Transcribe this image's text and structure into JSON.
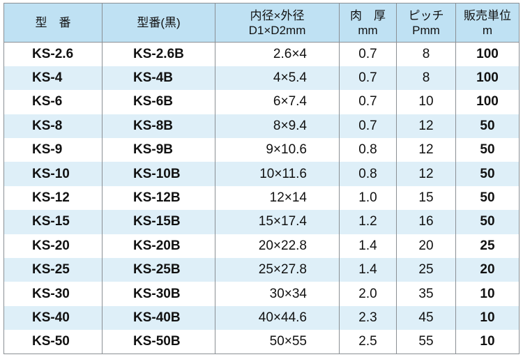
{
  "headers": {
    "model": "型　番",
    "model_black": "型番(黒)",
    "dimension": {
      "line1": "内径×外径",
      "line2": "D1×D2mm"
    },
    "thickness": {
      "line1": "肉　厚",
      "line2": "mm"
    },
    "pitch": {
      "line1": "ピッチ",
      "line2": "Pmm"
    },
    "sales_unit": {
      "line1": "販売単位",
      "line2": "m"
    }
  },
  "rows": [
    {
      "model": "KS-2.6",
      "model_black": "KS-2.6B",
      "dimension": "2.6×4",
      "thickness": "0.7",
      "pitch": "8",
      "unit": "100"
    },
    {
      "model": "KS-4",
      "model_black": "KS-4B",
      "dimension": "4×5.4",
      "thickness": "0.7",
      "pitch": "8",
      "unit": "100"
    },
    {
      "model": "KS-6",
      "model_black": "KS-6B",
      "dimension": "6×7.4",
      "thickness": "0.7",
      "pitch": "10",
      "unit": "100"
    },
    {
      "model": "KS-8",
      "model_black": "KS-8B",
      "dimension": "8×9.4",
      "thickness": "0.7",
      "pitch": "12",
      "unit": "50"
    },
    {
      "model": "KS-9",
      "model_black": "KS-9B",
      "dimension": "9×10.6",
      "thickness": "0.8",
      "pitch": "12",
      "unit": "50"
    },
    {
      "model": "KS-10",
      "model_black": "KS-10B",
      "dimension": "10×11.6",
      "thickness": "0.8",
      "pitch": "12",
      "unit": "50"
    },
    {
      "model": "KS-12",
      "model_black": "KS-12B",
      "dimension": "12×14",
      "thickness": "1.0",
      "pitch": "15",
      "unit": "50"
    },
    {
      "model": "KS-15",
      "model_black": "KS-15B",
      "dimension": "15×17.4",
      "thickness": "1.2",
      "pitch": "16",
      "unit": "50"
    },
    {
      "model": "KS-20",
      "model_black": "KS-20B",
      "dimension": "20×22.8",
      "thickness": "1.4",
      "pitch": "20",
      "unit": "25"
    },
    {
      "model": "KS-25",
      "model_black": "KS-25B",
      "dimension": "25×27.8",
      "thickness": "1.4",
      "pitch": "25",
      "unit": "20"
    },
    {
      "model": "KS-30",
      "model_black": "KS-30B",
      "dimension": "30×34",
      "thickness": "2.0",
      "pitch": "35",
      "unit": "10"
    },
    {
      "model": "KS-40",
      "model_black": "KS-40B",
      "dimension": "40×44.6",
      "thickness": "2.3",
      "pitch": "45",
      "unit": "10"
    },
    {
      "model": "KS-50",
      "model_black": "KS-50B",
      "dimension": "50×55",
      "thickness": "2.5",
      "pitch": "55",
      "unit": "10"
    }
  ],
  "colors": {
    "header_bg": "#bfe1f3",
    "stripe_bg": "#deeff8",
    "row_bg": "#ffffff",
    "border": "#8a8f94",
    "text": "#111111"
  }
}
